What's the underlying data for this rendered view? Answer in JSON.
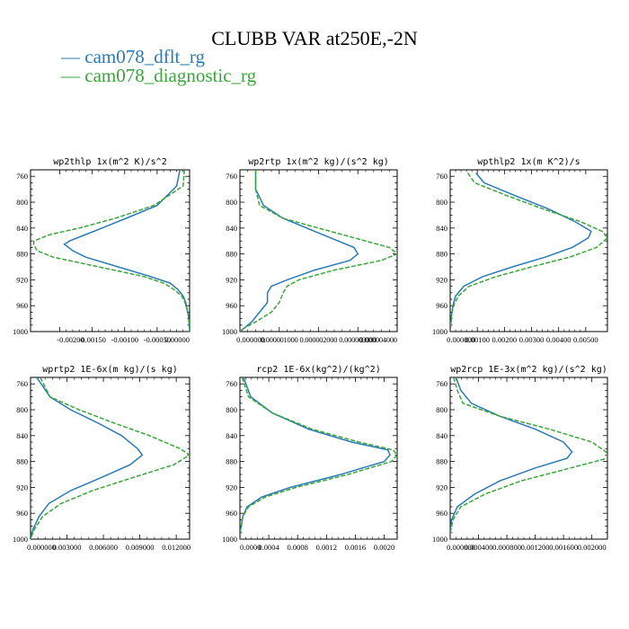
{
  "title": "CLUBB VAR at250E,-2N",
  "colors": {
    "dflt": "#2a7ab6",
    "diag": "#3aa53a"
  },
  "chart_data": [
    {
      "type": "line",
      "title": "wp2thlp  1x(m^2 K)/s^2",
      "y_ticks": [
        "760",
        "800",
        "840",
        "880",
        "920",
        "960",
        "1000"
      ],
      "x_ticks": [
        "-0.00200",
        "-0.00150",
        "-0.00100",
        "-0.00050",
        "0.00000"
      ],
      "xlim": [
        -0.00245,
        0.0
      ],
      "ylim": [
        1000,
        750
      ],
      "y": [
        750,
        775,
        805,
        825,
        840,
        850,
        860,
        865,
        875,
        885,
        900,
        915,
        925,
        935,
        945,
        955,
        965,
        975,
        985,
        995,
        1000
      ],
      "series": [
        {
          "name": "cam078_dflt_rg",
          "values": [
            -0.00015,
            -0.0002,
            -0.0005,
            -0.00098,
            -0.00135,
            -0.0016,
            -0.00185,
            -0.00193,
            -0.0018,
            -0.0016,
            -0.0011,
            -0.0006,
            -0.0003,
            -0.00018,
            -0.0001,
            -6e-05,
            -4e-05,
            -2e-05,
            -1e-05,
            0.0,
            0.0
          ]
        },
        {
          "name": "cam078_diagnostic_rg",
          "values": [
            -8e-05,
            -0.0001,
            -0.00055,
            -0.00115,
            -0.0017,
            -0.00215,
            -0.0024,
            -0.0024,
            -0.00235,
            -0.0021,
            -0.0014,
            -0.0007,
            -0.0004,
            -0.00024,
            -0.00012,
            -7e-05,
            -4e-05,
            -2e-05,
            -1e-05,
            0.0,
            0.0
          ]
        }
      ]
    },
    {
      "type": "line",
      "title": "wp2rtp  1x(m^2 kg)/(s^2 kg)",
      "y_ticks": [
        "760",
        "800",
        "840",
        "880",
        "920",
        "960",
        "1000"
      ],
      "x_ticks": [
        "0.000000",
        "0.000001000",
        "0.000002000",
        "0.000003000",
        "0.000004000"
      ],
      "xlim": [
        0.0,
        4e-06
      ],
      "ylim": [
        1000,
        750
      ],
      "y": [
        750,
        780,
        805,
        825,
        845,
        860,
        870,
        880,
        890,
        905,
        920,
        930,
        940,
        955,
        970,
        985,
        995,
        1000
      ],
      "series": [
        {
          "name": "cam078_dflt_rg",
          "values": [
            4e-07,
            4e-07,
            6e-07,
            1.1e-06,
            1.9e-06,
            2.5e-06,
            2.9e-06,
            3e-06,
            2.8e-06,
            1.9e-06,
            1.2e-06,
            8e-07,
            7e-07,
            7e-07,
            5e-07,
            3e-07,
            1e-07,
            0.0
          ]
        },
        {
          "name": "cam078_diagnostic_rg",
          "values": [
            4e-07,
            4e-07,
            5e-07,
            1.1e-06,
            2.3e-06,
            3.2e-06,
            3.8e-06,
            4e-06,
            3.6e-06,
            2.4e-06,
            1.5e-06,
            1.2e-06,
            1.1e-06,
            1e-06,
            8e-07,
            4e-07,
            1e-07,
            0.0
          ]
        }
      ]
    },
    {
      "type": "line",
      "title": "wpthlp2  1x(m K^2)/s",
      "y_ticks": [
        "760",
        "800",
        "840",
        "880",
        "920",
        "960",
        "1000"
      ],
      "x_ticks": [
        "0.000000",
        "0.00100",
        "0.00200",
        "0.00300",
        "0.00400",
        "0.00500"
      ],
      "xlim": [
        0.0,
        0.0058
      ],
      "ylim": [
        1000,
        750
      ],
      "y": [
        755,
        770,
        790,
        810,
        830,
        845,
        855,
        870,
        885,
        900,
        915,
        930,
        945,
        960,
        975,
        990,
        1000
      ],
      "series": [
        {
          "name": "cam078_dflt_rg",
          "values": [
            0.00095,
            0.00125,
            0.0024,
            0.0036,
            0.0046,
            0.0052,
            0.0051,
            0.0045,
            0.0035,
            0.0023,
            0.0012,
            0.0005,
            0.0002,
            0.0001,
            5e-05,
            2e-05,
            0.0
          ]
        },
        {
          "name": "cam078_diagnostic_rg",
          "values": [
            0.00065,
            0.0009,
            0.0021,
            0.0034,
            0.0048,
            0.0056,
            0.0058,
            0.0054,
            0.0044,
            0.003,
            0.0017,
            0.0007,
            0.0003,
            0.00012,
            5e-05,
            2e-05,
            0.0
          ]
        }
      ]
    },
    {
      "type": "line",
      "title": "wprtp2  1E-6x(m kg)/(s kg)",
      "y_ticks": [
        "760",
        "800",
        "840",
        "880",
        "920",
        "960",
        "1000"
      ],
      "x_ticks": [
        "0.000000",
        "0.003000",
        "0.006000",
        "0.009000",
        "0.012000"
      ],
      "xlim": [
        0.0,
        0.0131
      ],
      "ylim": [
        1000,
        750
      ],
      "y": [
        750,
        780,
        800,
        820,
        840,
        860,
        870,
        885,
        905,
        925,
        945,
        965,
        985,
        1000
      ],
      "series": [
        {
          "name": "cam078_dflt_rg",
          "values": [
            0.0005,
            0.0016,
            0.0033,
            0.0055,
            0.0075,
            0.0088,
            0.0092,
            0.0082,
            0.0058,
            0.0033,
            0.0015,
            0.0007,
            0.0002,
            0.0
          ]
        },
        {
          "name": "cam078_diagnostic_rg",
          "values": [
            0.0008,
            0.0016,
            0.004,
            0.0068,
            0.0098,
            0.0123,
            0.0131,
            0.0118,
            0.0084,
            0.0051,
            0.0025,
            0.001,
            0.0003,
            0.0
          ]
        }
      ]
    },
    {
      "type": "line",
      "title": "rcp2  1E-6x(kg^2)/(kg^2)",
      "y_ticks": [
        "760",
        "800",
        "840",
        "880",
        "920",
        "960",
        "1000"
      ],
      "x_ticks": [
        "0.0000",
        "0.0004",
        "0.0008",
        "0.0012",
        "0.0016",
        "0.0020"
      ],
      "xlim": [
        0.0,
        0.00218
      ],
      "ylim": [
        1000,
        750
      ],
      "y": [
        750,
        780,
        805,
        830,
        850,
        862,
        870,
        880,
        900,
        920,
        935,
        950,
        965,
        985,
        1000
      ],
      "series": [
        {
          "name": "cam078_dflt_rg",
          "values": [
            5e-05,
            0.00015,
            0.00045,
            0.00095,
            0.00155,
            0.00205,
            0.00208,
            0.002,
            0.0014,
            0.0007,
            0.0003,
            0.0001,
            4e-05,
            1e-05,
            0.0
          ]
        },
        {
          "name": "cam078_diagnostic_rg",
          "values": [
            3e-05,
            0.00012,
            0.00045,
            0.001,
            0.00165,
            0.00212,
            0.00218,
            0.0021,
            0.0015,
            0.00078,
            0.00035,
            0.00012,
            4e-05,
            1e-05,
            0.0
          ]
        }
      ]
    },
    {
      "type": "line",
      "title": "wp2rcp  1E-3x(m^2 kg)/(s^2 kg)",
      "y_ticks": [
        "760",
        "800",
        "840",
        "880",
        "920",
        "960",
        "1000"
      ],
      "x_ticks": [
        "0.000000",
        "0.000400",
        "0.000800",
        "0.001200",
        "0.001600",
        "0.002000"
      ],
      "xlim": [
        0.0,
        0.00222
      ],
      "ylim": [
        1000,
        750
      ],
      "y": [
        750,
        770,
        790,
        810,
        830,
        850,
        865,
        875,
        890,
        910,
        930,
        950,
        970,
        990,
        1000
      ],
      "series": [
        {
          "name": "cam078_dflt_rg",
          "values": [
            8e-05,
            0.00015,
            0.0003,
            0.0007,
            0.0012,
            0.0016,
            0.00172,
            0.00165,
            0.0012,
            0.0007,
            0.00035,
            0.0001,
            2e-05,
            0.0,
            0.0
          ]
        },
        {
          "name": "cam078_diagnostic_rg",
          "values": [
            5e-05,
            0.0001,
            0.00018,
            0.0007,
            0.0014,
            0.002,
            0.0022,
            0.00222,
            0.0017,
            0.001,
            0.0005,
            0.00015,
            4e-05,
            0.0,
            0.0
          ]
        }
      ]
    }
  ]
}
